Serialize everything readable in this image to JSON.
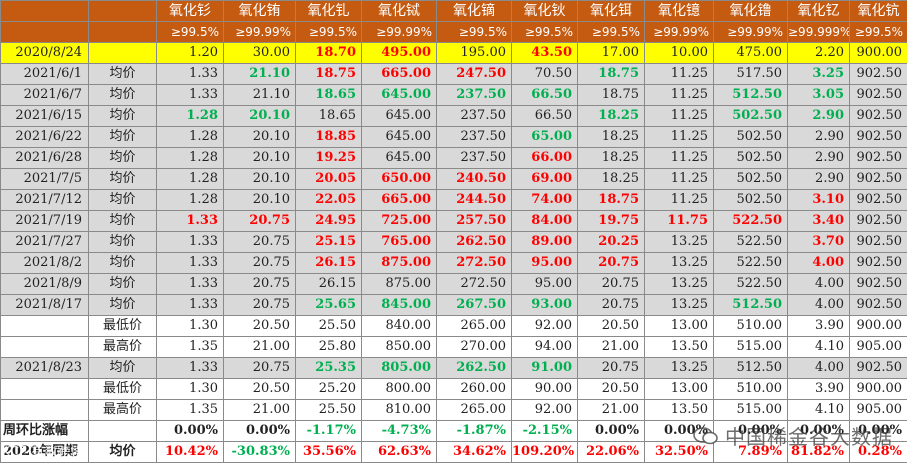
{
  "header": {
    "names": [
      "氧化钐",
      "氧化铕",
      "氧化钆",
      "氧化铽",
      "氧化镝",
      "氧化钬",
      "氧化铒",
      "氧化镱",
      "氧化镥",
      "氧化钇",
      "氧化钪"
    ],
    "purities": [
      "≥99.5%",
      "≥99.99%",
      "≥99.5%",
      "≥99.99%",
      "≥99.5%",
      "≥99.5%",
      "≥99.5%",
      "≥99.99%",
      "≥99.99%",
      "≥99.999%",
      "≥99.5%"
    ]
  },
  "rows": [
    {
      "date": "2020/8/24",
      "label": "",
      "kind": "base",
      "values": [
        "1.20",
        "30.00",
        "18.70",
        "495.00",
        "195.00",
        "43.50",
        "17.00",
        "10.00",
        "475.00",
        "2.20",
        "900.00"
      ],
      "colors": [
        "",
        "",
        "red",
        "red",
        "",
        "red",
        "",
        "",
        "",
        "",
        ""
      ]
    },
    {
      "date": "2021/6/1",
      "label": "均价",
      "kind": "gray",
      "values": [
        "1.33",
        "21.10",
        "18.75",
        "665.00",
        "247.50",
        "70.50",
        "18.75",
        "11.25",
        "517.50",
        "3.25",
        "902.50"
      ],
      "colors": [
        "",
        "green",
        "red",
        "red",
        "red",
        "",
        "green",
        "",
        "",
        "green",
        ""
      ]
    },
    {
      "date": "2021/6/7",
      "label": "均价",
      "kind": "gray",
      "values": [
        "1.33",
        "21.10",
        "18.65",
        "645.00",
        "237.50",
        "66.50",
        "18.75",
        "11.25",
        "512.50",
        "3.05",
        "902.50"
      ],
      "colors": [
        "",
        "",
        "green",
        "green",
        "green",
        "green",
        "",
        "",
        "green",
        "green",
        ""
      ]
    },
    {
      "date": "2021/6/15",
      "label": "均价",
      "kind": "gray",
      "values": [
        "1.28",
        "20.10",
        "18.65",
        "645.00",
        "237.50",
        "66.50",
        "18.25",
        "11.25",
        "502.50",
        "2.90",
        "902.50"
      ],
      "colors": [
        "green",
        "green",
        "",
        "",
        "",
        "",
        "green",
        "",
        "green",
        "green",
        ""
      ]
    },
    {
      "date": "2021/6/22",
      "label": "均价",
      "kind": "gray",
      "values": [
        "1.28",
        "20.10",
        "18.85",
        "645.00",
        "237.50",
        "65.00",
        "18.25",
        "11.25",
        "502.50",
        "2.90",
        "902.50"
      ],
      "colors": [
        "",
        "",
        "red",
        "",
        "",
        "green",
        "",
        "",
        "",
        "",
        ""
      ]
    },
    {
      "date": "2021/6/28",
      "label": "均价",
      "kind": "gray",
      "values": [
        "1.28",
        "20.10",
        "19.25",
        "645.00",
        "237.50",
        "66.00",
        "18.25",
        "11.25",
        "502.50",
        "2.90",
        "902.50"
      ],
      "colors": [
        "",
        "",
        "red",
        "",
        "",
        "red",
        "",
        "",
        "",
        "",
        ""
      ]
    },
    {
      "date": "2021/7/5",
      "label": "均价",
      "kind": "gray",
      "values": [
        "1.28",
        "20.10",
        "20.05",
        "650.00",
        "240.50",
        "69.00",
        "18.25",
        "11.25",
        "502.50",
        "2.90",
        "902.50"
      ],
      "colors": [
        "",
        "",
        "red",
        "red",
        "red",
        "red",
        "",
        "",
        "",
        "",
        ""
      ]
    },
    {
      "date": "2021/7/12",
      "label": "均价",
      "kind": "gray",
      "values": [
        "1.28",
        "20.10",
        "22.05",
        "665.00",
        "244.50",
        "74.00",
        "18.75",
        "11.25",
        "502.50",
        "3.10",
        "902.50"
      ],
      "colors": [
        "",
        "",
        "red",
        "red",
        "red",
        "red",
        "red",
        "",
        "",
        "red",
        ""
      ]
    },
    {
      "date": "2021/7/19",
      "label": "均价",
      "kind": "gray",
      "values": [
        "1.33",
        "20.75",
        "24.95",
        "725.00",
        "257.50",
        "84.00",
        "19.75",
        "11.75",
        "522.50",
        "3.40",
        "902.50"
      ],
      "colors": [
        "red",
        "red",
        "red",
        "red",
        "red",
        "red",
        "red",
        "red",
        "red",
        "red",
        ""
      ]
    },
    {
      "date": "2021/7/27",
      "label": "均价",
      "kind": "gray",
      "values": [
        "1.33",
        "20.75",
        "25.15",
        "765.00",
        "262.50",
        "89.00",
        "20.25",
        "13.25",
        "522.50",
        "3.70",
        "902.50"
      ],
      "colors": [
        "",
        "",
        "red",
        "red",
        "red",
        "red",
        "red",
        "",
        "",
        "red",
        ""
      ]
    },
    {
      "date": "2021/8/2",
      "label": "均价",
      "kind": "gray",
      "values": [
        "1.33",
        "20.75",
        "26.15",
        "875.00",
        "272.50",
        "95.00",
        "20.75",
        "13.25",
        "522.50",
        "4.00",
        "902.50"
      ],
      "colors": [
        "",
        "",
        "red",
        "red",
        "red",
        "red",
        "red",
        "",
        "",
        "red",
        ""
      ]
    },
    {
      "date": "2021/8/9",
      "label": "均价",
      "kind": "gray",
      "values": [
        "1.33",
        "20.75",
        "26.15",
        "875.00",
        "272.50",
        "95.00",
        "20.75",
        "13.25",
        "522.50",
        "4.00",
        "902.50"
      ],
      "colors": [
        "",
        "",
        "",
        "",
        "",
        "",
        "",
        "",
        "",
        "",
        ""
      ]
    },
    {
      "date": "2021/8/17",
      "label": "均价",
      "kind": "gray",
      "values": [
        "1.33",
        "20.75",
        "25.65",
        "845.00",
        "267.50",
        "93.00",
        "20.75",
        "13.25",
        "512.50",
        "4.00",
        "902.50"
      ],
      "colors": [
        "",
        "",
        "green",
        "green",
        "green",
        "green",
        "",
        "",
        "green",
        "",
        ""
      ]
    },
    {
      "date": "",
      "label": "最低价",
      "kind": "white",
      "values": [
        "1.30",
        "20.50",
        "25.50",
        "840.00",
        "265.00",
        "92.00",
        "20.50",
        "13.00",
        "510.00",
        "3.90",
        "900.00"
      ],
      "colors": [
        "",
        "",
        "",
        "",
        "",
        "",
        "",
        "",
        "",
        "",
        ""
      ]
    },
    {
      "date": "",
      "label": "最高价",
      "kind": "white",
      "values": [
        "1.35",
        "21.00",
        "25.80",
        "850.00",
        "270.00",
        "94.00",
        "21.00",
        "13.50",
        "515.00",
        "4.10",
        "905.00"
      ],
      "colors": [
        "",
        "",
        "",
        "",
        "",
        "",
        "",
        "",
        "",
        "",
        ""
      ]
    },
    {
      "date": "2021/8/23",
      "label": "均价",
      "kind": "gray",
      "values": [
        "1.33",
        "20.75",
        "25.35",
        "805.00",
        "262.50",
        "91.00",
        "20.75",
        "13.25",
        "512.50",
        "4.00",
        "902.50"
      ],
      "colors": [
        "",
        "",
        "green",
        "green",
        "green",
        "green",
        "",
        "",
        "",
        "",
        ""
      ]
    },
    {
      "date": "",
      "label": "最低价",
      "kind": "white",
      "values": [
        "1.30",
        "20.50",
        "25.20",
        "800.00",
        "260.00",
        "90.00",
        "20.50",
        "13.00",
        "510.00",
        "3.90",
        "900.00"
      ],
      "colors": [
        "",
        "",
        "",
        "",
        "",
        "",
        "",
        "",
        "",
        "",
        ""
      ]
    },
    {
      "date": "",
      "label": "最高价",
      "kind": "white",
      "values": [
        "1.35",
        "21.00",
        "25.50",
        "810.00",
        "265.00",
        "92.00",
        "21.00",
        "13.50",
        "515.00",
        "4.10",
        "905.00"
      ],
      "colors": [
        "",
        "",
        "",
        "",
        "",
        "",
        "",
        "",
        "",
        "",
        ""
      ]
    },
    {
      "date": "周环比涨幅",
      "label": "",
      "kind": "stat",
      "values": [
        "0.00%",
        "0.00%",
        "-1.17%",
        "-4.73%",
        "-1.87%",
        "-2.15%",
        "0.00%",
        "0.00%",
        "0.00%",
        "0.00%",
        "0.00%"
      ],
      "colors": [
        "",
        "",
        "green",
        "green",
        "green",
        "green",
        "",
        "",
        "",
        "",
        ""
      ]
    },
    {
      "date": "2020年同期",
      "label": "均价",
      "kind": "stat",
      "values": [
        "10.42%",
        "-30.83%",
        "35.56%",
        "62.63%",
        "34.62%",
        "109.20%",
        "22.06%",
        "32.50%",
        "7.89%",
        "81.82%",
        "0.28%"
      ],
      "colors": [
        "red",
        "green",
        "red",
        "red",
        "red",
        "red",
        "red",
        "red",
        "red",
        "red",
        "red"
      ]
    }
  ],
  "watermark": {
    "text": "中国稀金谷大数据",
    "left_text": "KCE 有数跨境"
  }
}
